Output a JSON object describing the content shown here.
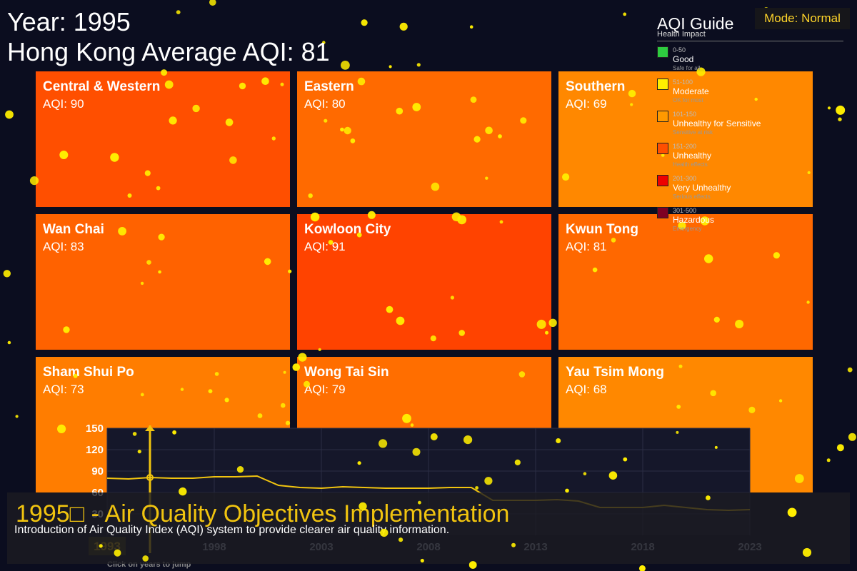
{
  "header": {
    "year_text": "Year: 1995",
    "average_text": "Hong Kong Average AQI: 81"
  },
  "mode": {
    "label": "Mode: Normal"
  },
  "districts": [
    {
      "name": "Central & Western",
      "aqi_text": "AQI: 90",
      "aqi": 90,
      "color": "#ff4f00"
    },
    {
      "name": "Eastern",
      "aqi_text": "AQI: 80",
      "aqi": 80,
      "color": "#ff6a00"
    },
    {
      "name": "Southern",
      "aqi_text": "AQI: 69",
      "aqi": 69,
      "color": "#ff8800"
    },
    {
      "name": "Wan Chai",
      "aqi_text": "AQI: 83",
      "aqi": 83,
      "color": "#ff6200"
    },
    {
      "name": "Kowloon City",
      "aqi_text": "AQI: 91",
      "aqi": 91,
      "color": "#ff4300"
    },
    {
      "name": "Kwun Tong",
      "aqi_text": "AQI: 81",
      "aqi": 81,
      "color": "#ff6800"
    },
    {
      "name": "Sham Shui Po",
      "aqi_text": "AQI: 73",
      "aqi": 73,
      "color": "#ff7d00"
    },
    {
      "name": "Wong Tai Sin",
      "aqi_text": "AQI: 79",
      "aqi": 79,
      "color": "#ff6e00"
    },
    {
      "name": "Yau Tsim Mong",
      "aqi_text": "AQI: 68",
      "aqi": 68,
      "color": "#ff8800"
    }
  ],
  "legend": {
    "title": "AQI Guide",
    "subtitle": "Health Impact",
    "items": [
      {
        "range": "0-50",
        "label": "Good",
        "desc": "Safe for all",
        "color": "#2ecc40"
      },
      {
        "range": "51-100",
        "label": "Moderate",
        "desc": "OK for most",
        "color": "#ffee00"
      },
      {
        "range": "101-150",
        "label": "Unhealthy for Sensitive",
        "desc": "Sensitive at risk",
        "color": "#ff9900"
      },
      {
        "range": "151-200",
        "label": "Unhealthy",
        "desc": "Health effects",
        "color": "#ff4f00"
      },
      {
        "range": "201-300",
        "label": "Very Unhealthy",
        "desc": "Serious effects",
        "color": "#ee0000"
      },
      {
        "range": "301-500",
        "label": "Hazardous",
        "desc": "Emergency",
        "color": "#7e0023"
      }
    ]
  },
  "chart_data": {
    "type": "line",
    "x": [
      1993,
      1994,
      1995,
      1996,
      1997,
      1998,
      1999,
      2000,
      2001,
      2002,
      2003,
      2004,
      2005,
      2006,
      2007,
      2008,
      2009,
      2010,
      2011,
      2012,
      2013,
      2014,
      2015,
      2016,
      2017,
      2018,
      2019,
      2020,
      2021,
      2022,
      2023
    ],
    "y": [
      80,
      79,
      81,
      80,
      80,
      82,
      82,
      83,
      70,
      67,
      66,
      68,
      67,
      66,
      66,
      66,
      67,
      67,
      49,
      49,
      49,
      50,
      48,
      39,
      39,
      39,
      42,
      39,
      36,
      35,
      36
    ],
    "ylim": [
      0,
      150
    ],
    "xlim": [
      1993,
      2023
    ],
    "yticks": [
      30,
      60,
      90,
      120,
      150
    ],
    "xtick_labels": [
      "1993",
      "1998",
      "2003",
      "2008",
      "2013",
      "2018",
      "2023"
    ],
    "selected_year": 1995,
    "line_color": "#f1c40f",
    "grid": true
  },
  "chart_hint": "Click on years to jump",
  "event": {
    "title": "1995□ - Air Quality Objectives Implementation",
    "description": "Introduction of Air Quality Index (AQI) system to provide clearer air quality information."
  },
  "colors": {
    "background": "#0b0d1f",
    "accent": "#f1c40f",
    "particle": "#ffee00"
  }
}
